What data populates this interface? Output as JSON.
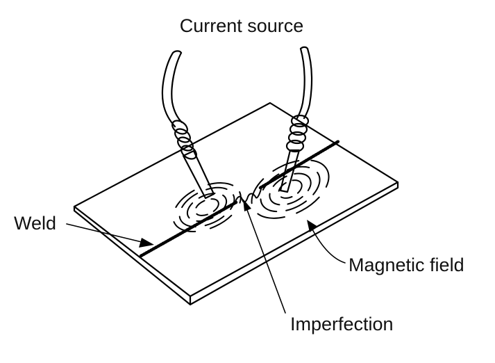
{
  "labels": {
    "current_source": "Current source",
    "weld": "Weld",
    "magnetic_field": "Magnetic field",
    "imperfection": "Imperfection"
  },
  "colors": {
    "ink": "#000000",
    "background": "#ffffff"
  }
}
